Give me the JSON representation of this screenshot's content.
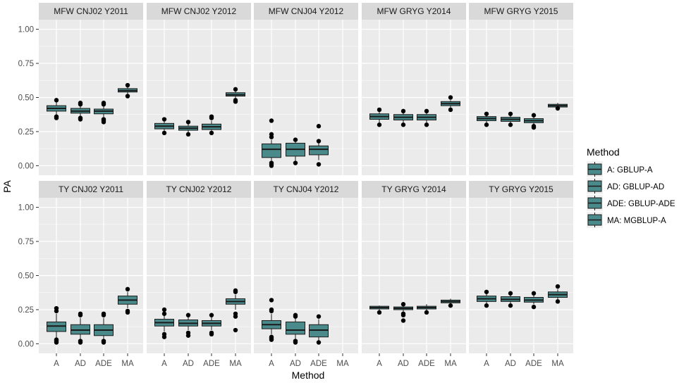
{
  "chart_data": {
    "type": "boxplot",
    "xlabel": "Method",
    "ylabel": "PA",
    "ylim": [
      -0.07,
      1.07
    ],
    "yticks": [
      0.0,
      0.25,
      0.5,
      0.75,
      1.0
    ],
    "ytick_labels": [
      "0.00",
      "0.25",
      "0.50",
      "0.75",
      "1.00"
    ],
    "categories": [
      "A",
      "AD",
      "ADE",
      "MA"
    ],
    "grid": true,
    "colors": {
      "box_fill": "#4a8a8b",
      "panel_bg": "#ebebeb",
      "strip_bg": "#d9d9d9",
      "grid": "#ffffff",
      "text": "#4d4d4d"
    },
    "legend": {
      "title": "Method",
      "position": "right",
      "entries": [
        "A: GBLUP-A",
        "AD: GBLUP-AD",
        "ADE: GBLUP-ADE",
        "MA: MGBLUP-A"
      ]
    },
    "panels": [
      {
        "title": "MFW CNJ02 Y2011",
        "boxes": [
          {
            "cat": "A",
            "min": 0.37,
            "q1": 0.4,
            "median": 0.42,
            "q3": 0.44,
            "max": 0.47,
            "outliers": [
              0.35,
              0.36,
              0.48
            ]
          },
          {
            "cat": "AD",
            "min": 0.36,
            "q1": 0.385,
            "median": 0.4,
            "q3": 0.42,
            "max": 0.44,
            "outliers": [
              0.34,
              0.35,
              0.45,
              0.46
            ]
          },
          {
            "cat": "ADE",
            "min": 0.35,
            "q1": 0.38,
            "median": 0.4,
            "q3": 0.415,
            "max": 0.44,
            "outliers": [
              0.32,
              0.33,
              0.34,
              0.45,
              0.46
            ]
          },
          {
            "cat": "MA",
            "min": 0.52,
            "q1": 0.54,
            "median": 0.55,
            "q3": 0.565,
            "max": 0.58,
            "outliers": [
              0.51,
              0.59
            ]
          }
        ]
      },
      {
        "title": "MFW CNJ02 Y2012",
        "boxes": [
          {
            "cat": "A",
            "min": 0.25,
            "q1": 0.27,
            "median": 0.29,
            "q3": 0.31,
            "max": 0.33,
            "outliers": [
              0.24,
              0.34
            ]
          },
          {
            "cat": "AD",
            "min": 0.24,
            "q1": 0.26,
            "median": 0.275,
            "q3": 0.29,
            "max": 0.31,
            "outliers": [
              0.23,
              0.32
            ]
          },
          {
            "cat": "ADE",
            "min": 0.25,
            "q1": 0.265,
            "median": 0.285,
            "q3": 0.305,
            "max": 0.33,
            "outliers": [
              0.24,
              0.35,
              0.36
            ]
          },
          {
            "cat": "MA",
            "min": 0.49,
            "q1": 0.51,
            "median": 0.52,
            "q3": 0.535,
            "max": 0.55,
            "outliers": [
              0.47,
              0.48,
              0.56
            ]
          }
        ]
      },
      {
        "title": "MFW CNJ04 Y2012",
        "boxes": [
          {
            "cat": "A",
            "min": 0.03,
            "q1": 0.06,
            "median": 0.12,
            "q3": 0.16,
            "max": 0.19,
            "outliers": [
              0.0,
              0.01,
              0.02,
              0.21,
              0.23,
              0.33
            ]
          },
          {
            "cat": "AD",
            "min": 0.03,
            "q1": 0.07,
            "median": 0.12,
            "q3": 0.165,
            "max": 0.18,
            "outliers": [
              0.02,
              0.19
            ]
          },
          {
            "cat": "ADE",
            "min": 0.04,
            "q1": 0.08,
            "median": 0.12,
            "q3": 0.145,
            "max": 0.17,
            "outliers": [
              0.01,
              0.18,
              0.29
            ]
          }
        ]
      },
      {
        "title": "MFW GRYG Y2014",
        "boxes": [
          {
            "cat": "A",
            "min": 0.31,
            "q1": 0.34,
            "median": 0.36,
            "q3": 0.38,
            "max": 0.4,
            "outliers": [
              0.3,
              0.41
            ]
          },
          {
            "cat": "AD",
            "min": 0.31,
            "q1": 0.335,
            "median": 0.355,
            "q3": 0.375,
            "max": 0.39,
            "outliers": [
              0.3,
              0.4
            ]
          },
          {
            "cat": "ADE",
            "min": 0.31,
            "q1": 0.335,
            "median": 0.355,
            "q3": 0.375,
            "max": 0.39,
            "outliers": [
              0.3,
              0.4
            ]
          },
          {
            "cat": "MA",
            "min": 0.42,
            "q1": 0.44,
            "median": 0.455,
            "q3": 0.47,
            "max": 0.48,
            "outliers": [
              0.41,
              0.5
            ]
          }
        ]
      },
      {
        "title": "MFW GRYG Y2015",
        "boxes": [
          {
            "cat": "A",
            "min": 0.31,
            "q1": 0.33,
            "median": 0.345,
            "q3": 0.36,
            "max": 0.37,
            "outliers": [
              0.3,
              0.38
            ]
          },
          {
            "cat": "AD",
            "min": 0.31,
            "q1": 0.325,
            "median": 0.34,
            "q3": 0.355,
            "max": 0.37,
            "outliers": [
              0.3,
              0.38
            ]
          },
          {
            "cat": "ADE",
            "min": 0.3,
            "q1": 0.315,
            "median": 0.33,
            "q3": 0.345,
            "max": 0.36,
            "outliers": [
              0.28,
              0.29,
              0.37
            ]
          },
          {
            "cat": "MA",
            "min": 0.42,
            "q1": 0.43,
            "median": 0.44,
            "q3": 0.45,
            "max": 0.46,
            "outliers": [
              0.42
            ]
          }
        ]
      },
      {
        "title": "TY CNJ02 Y2011",
        "boxes": [
          {
            "cat": "A",
            "min": 0.04,
            "q1": 0.09,
            "median": 0.13,
            "q3": 0.16,
            "max": 0.22,
            "outliers": [
              0.01,
              0.02,
              0.03,
              0.24,
              0.26
            ]
          },
          {
            "cat": "AD",
            "min": 0.03,
            "q1": 0.07,
            "median": 0.1,
            "q3": 0.14,
            "max": 0.19,
            "outliers": [
              0.01,
              0.02,
              0.21,
              0.22
            ]
          },
          {
            "cat": "ADE",
            "min": 0.03,
            "q1": 0.06,
            "median": 0.1,
            "q3": 0.14,
            "max": 0.19,
            "outliers": [
              0.01,
              0.02,
              0.21,
              0.22
            ]
          },
          {
            "cat": "MA",
            "min": 0.26,
            "q1": 0.29,
            "median": 0.32,
            "q3": 0.35,
            "max": 0.38,
            "outliers": [
              0.23,
              0.24,
              0.4
            ]
          }
        ]
      },
      {
        "title": "TY CNJ02 Y2012",
        "boxes": [
          {
            "cat": "A",
            "min": 0.09,
            "q1": 0.13,
            "median": 0.155,
            "q3": 0.18,
            "max": 0.21,
            "outliers": [
              0.05,
              0.07,
              0.22,
              0.25
            ]
          },
          {
            "cat": "AD",
            "min": 0.1,
            "q1": 0.13,
            "median": 0.15,
            "q3": 0.175,
            "max": 0.2,
            "outliers": [
              0.06,
              0.08,
              0.21
            ]
          },
          {
            "cat": "ADE",
            "min": 0.1,
            "q1": 0.13,
            "median": 0.15,
            "q3": 0.17,
            "max": 0.2,
            "outliers": [
              0.07,
              0.08,
              0.21
            ]
          },
          {
            "cat": "MA",
            "min": 0.25,
            "q1": 0.29,
            "median": 0.31,
            "q3": 0.33,
            "max": 0.36,
            "outliers": [
              0.1,
              0.2,
              0.22,
              0.38,
              0.39
            ]
          }
        ]
      },
      {
        "title": "TY CNJ04 Y2012",
        "boxes": [
          {
            "cat": "A",
            "min": 0.07,
            "q1": 0.11,
            "median": 0.14,
            "q3": 0.17,
            "max": 0.22,
            "outliers": [
              0.03,
              0.04,
              0.05,
              0.24,
              0.25,
              0.32
            ]
          },
          {
            "cat": "AD",
            "min": 0.03,
            "q1": 0.07,
            "median": 0.1,
            "q3": 0.16,
            "max": 0.19,
            "outliers": [
              0.01,
              0.02,
              0.2,
              0.21
            ]
          },
          {
            "cat": "ADE",
            "min": 0.02,
            "q1": 0.05,
            "median": 0.1,
            "q3": 0.14,
            "max": 0.18,
            "outliers": [
              0.01,
              0.2
            ]
          }
        ]
      },
      {
        "title": "TY GRYG Y2014",
        "boxes": [
          {
            "cat": "A",
            "min": 0.24,
            "q1": 0.255,
            "median": 0.265,
            "q3": 0.275,
            "max": 0.28,
            "outliers": [
              0.23
            ]
          },
          {
            "cat": "AD",
            "min": 0.23,
            "q1": 0.25,
            "median": 0.26,
            "q3": 0.27,
            "max": 0.28,
            "outliers": [
              0.17,
              0.21,
              0.22,
              0.29
            ]
          },
          {
            "cat": "ADE",
            "min": 0.24,
            "q1": 0.255,
            "median": 0.265,
            "q3": 0.275,
            "max": 0.29,
            "outliers": [
              0.23
            ]
          },
          {
            "cat": "MA",
            "min": 0.29,
            "q1": 0.3,
            "median": 0.31,
            "q3": 0.32,
            "max": 0.33,
            "outliers": [
              0.28
            ]
          }
        ]
      },
      {
        "title": "TY GRYG Y2015",
        "boxes": [
          {
            "cat": "A",
            "min": 0.29,
            "q1": 0.31,
            "median": 0.33,
            "q3": 0.35,
            "max": 0.37,
            "outliers": [
              0.28,
              0.38
            ]
          },
          {
            "cat": "AD",
            "min": 0.29,
            "q1": 0.31,
            "median": 0.325,
            "q3": 0.345,
            "max": 0.36,
            "outliers": [
              0.28,
              0.37
            ]
          },
          {
            "cat": "ADE",
            "min": 0.29,
            "q1": 0.305,
            "median": 0.32,
            "q3": 0.34,
            "max": 0.36,
            "outliers": [
              0.27,
              0.37
            ]
          },
          {
            "cat": "MA",
            "min": 0.32,
            "q1": 0.34,
            "median": 0.36,
            "q3": 0.38,
            "max": 0.4,
            "outliers": [
              0.31,
              0.42
            ]
          }
        ]
      }
    ]
  }
}
